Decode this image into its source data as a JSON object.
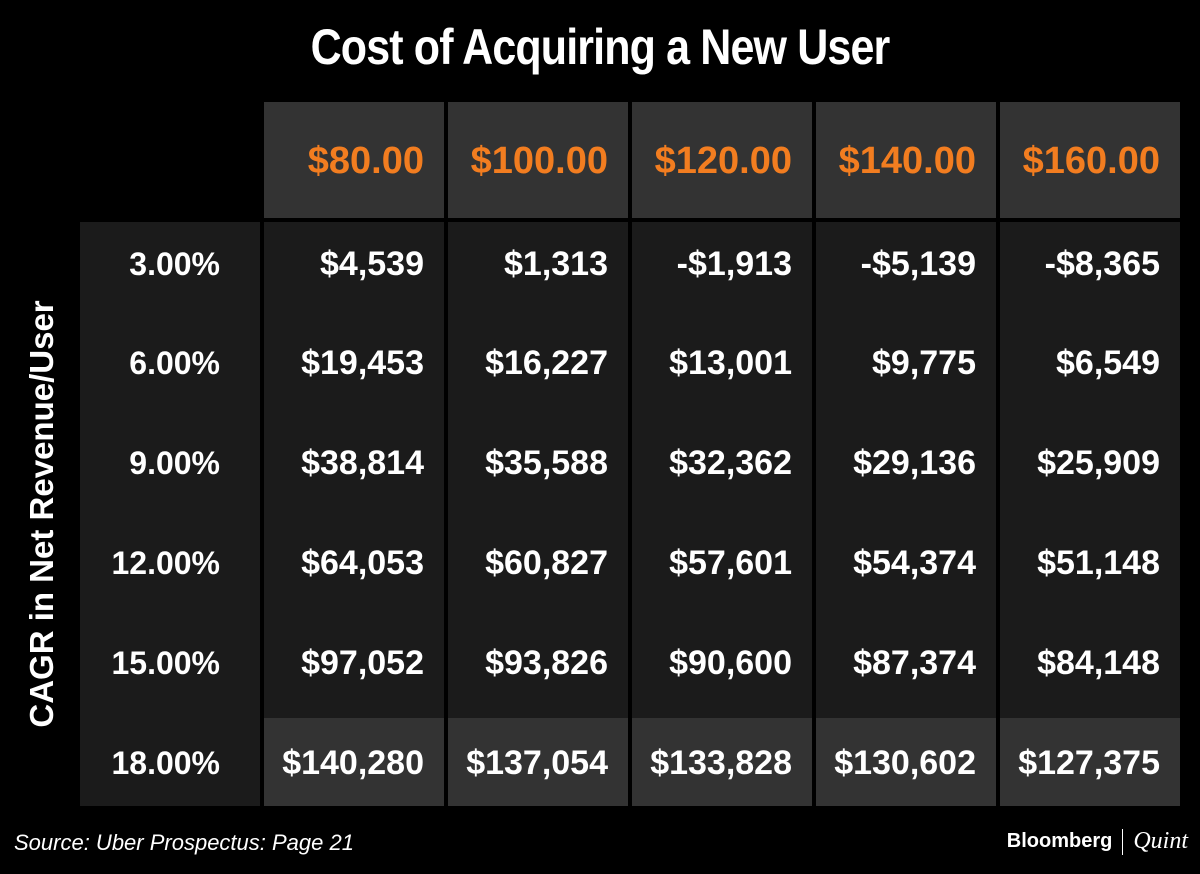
{
  "chart_data": {
    "type": "table",
    "title": "Cost of Acquiring a New User",
    "ylabel": "CAGR in Net Revenue/User",
    "columns": [
      "$80.00",
      "$100.00",
      "$120.00",
      "$140.00",
      "$160.00"
    ],
    "rows": [
      {
        "label": "3.00%",
        "values": [
          "$4,539",
          "$1,313",
          "-$1,913",
          "-$5,139",
          "-$8,365"
        ]
      },
      {
        "label": "6.00%",
        "values": [
          "$19,453",
          "$16,227",
          "$13,001",
          "$9,775",
          "$6,549"
        ]
      },
      {
        "label": "9.00%",
        "values": [
          "$38,814",
          "$35,588",
          "$32,362",
          "$29,136",
          "$25,909"
        ]
      },
      {
        "label": "12.00%",
        "values": [
          "$64,053",
          "$60,827",
          "$57,601",
          "$54,374",
          "$51,148"
        ]
      },
      {
        "label": "15.00%",
        "values": [
          "$97,052",
          "$93,826",
          "$90,600",
          "$87,374",
          "$84,148"
        ]
      },
      {
        "label": "18.00%",
        "values": [
          "$140,280",
          "$137,054",
          "$133,828",
          "$130,602",
          "$127,375"
        ]
      }
    ],
    "colors": {
      "header_text": "#f27d20",
      "header_bg": "#333333",
      "body_bg": "#1b1b1b",
      "background": "#000000"
    }
  },
  "source": "Source: Uber Prospectus: Page 21",
  "brand": {
    "name": "Bloomberg",
    "partner": "Quint"
  }
}
